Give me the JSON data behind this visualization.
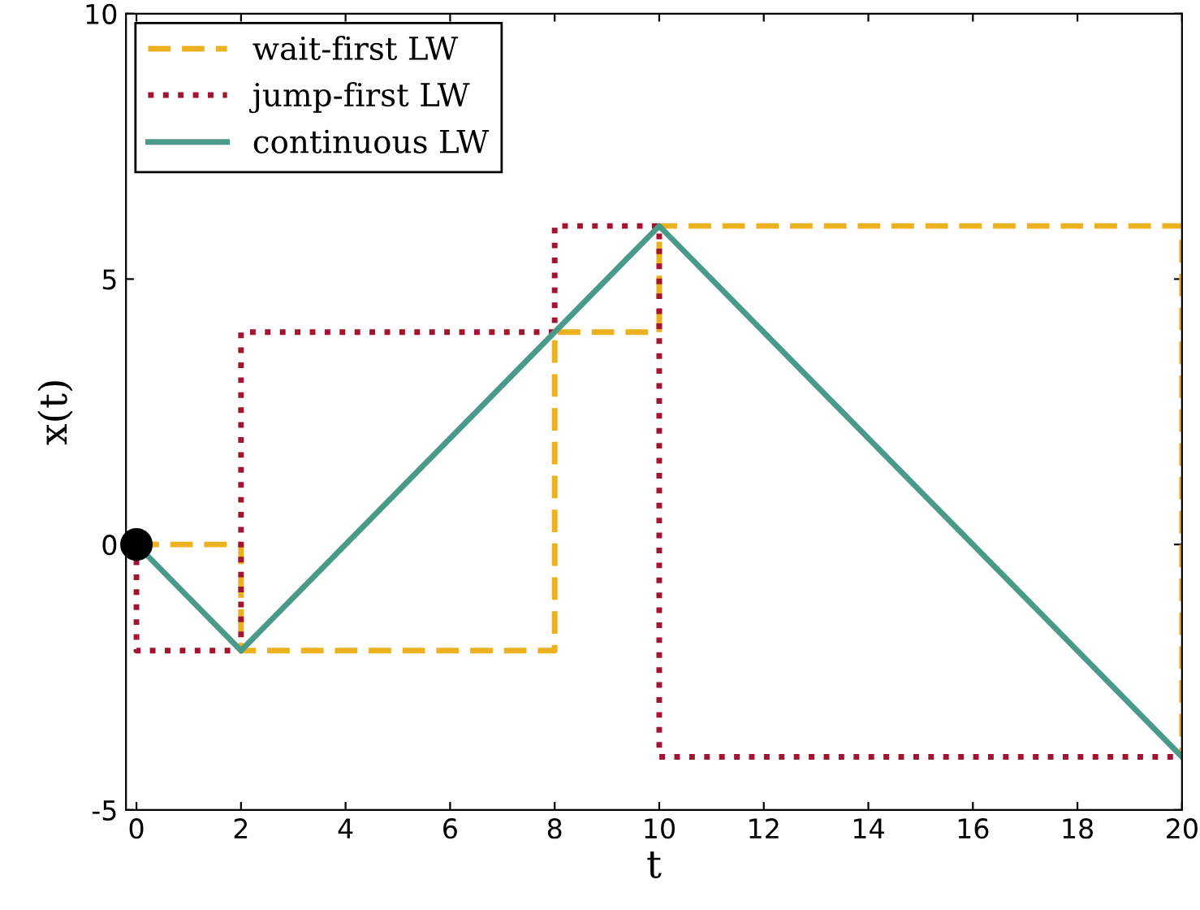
{
  "chart_data": {
    "type": "step",
    "xlabel": "t",
    "ylabel": "x(t)",
    "xlim": [
      -0.2,
      20
    ],
    "ylim": [
      -5,
      10
    ],
    "xticks": [
      0,
      2,
      4,
      6,
      8,
      10,
      12,
      14,
      16,
      18,
      20
    ],
    "yticks": [
      -5,
      0,
      5,
      10
    ],
    "grid": false,
    "legend": "top left",
    "series": [
      {
        "name": "wait-first LW",
        "color": "#edb120",
        "line_style": "dashed",
        "x": [
          0,
          2,
          8,
          10,
          20,
          20
        ],
        "values": [
          0,
          -2,
          4,
          6,
          6,
          -4
        ]
      },
      {
        "name": "jump-first LW",
        "color": "#a2142f",
        "line_style": "dotted",
        "x": [
          0,
          0,
          2,
          8,
          10,
          20
        ],
        "values": [
          0,
          -2,
          4,
          6,
          -4,
          -4
        ]
      },
      {
        "name": "continuous LW",
        "type": "line",
        "color": "#4a9a8a",
        "line_style": "solid",
        "x": [
          0,
          2,
          10,
          20
        ],
        "values": [
          0,
          -2,
          6,
          -4
        ]
      },
      {
        "type": "scatter",
        "color": "#000000",
        "marker": "circle",
        "x": [
          0
        ],
        "values": [
          0
        ]
      }
    ]
  }
}
